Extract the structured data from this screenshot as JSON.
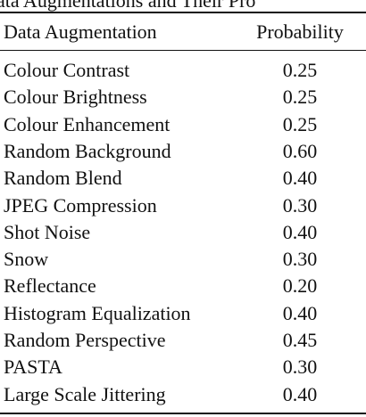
{
  "title": "ata Augmentations and Their Pro",
  "table": {
    "header": [
      "Data Augmentation",
      "Probability"
    ],
    "rows": [
      [
        "Colour Contrast",
        "0.25"
      ],
      [
        "Colour Brightness",
        "0.25"
      ],
      [
        "Colour Enhancement",
        "0.25"
      ],
      [
        "Random Background",
        "0.60"
      ],
      [
        "Random Blend",
        "0.40"
      ],
      [
        "JPEG Compression",
        "0.30"
      ],
      [
        "Shot Noise",
        "0.40"
      ],
      [
        "Snow",
        "0.30"
      ],
      [
        "Reflectance",
        "0.20"
      ],
      [
        "Histogram Equalization",
        "0.40"
      ],
      [
        "Random Perspective",
        "0.45"
      ],
      [
        "PASTA",
        "0.30"
      ],
      [
        "Large Scale Jittering",
        "0.40"
      ]
    ]
  }
}
